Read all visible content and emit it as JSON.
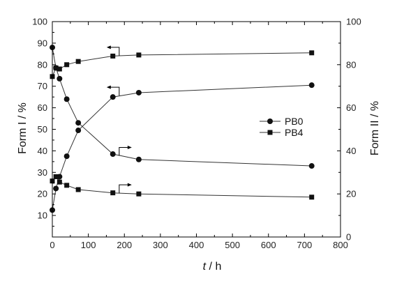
{
  "chart_data": {
    "type": "line",
    "xlabel_var": "t",
    "xlabel_unit": " / h",
    "ylabel_left": "Form I / %",
    "ylabel_right": "Form II / %",
    "xlim": [
      0,
      800
    ],
    "ylim_left": [
      0,
      100
    ],
    "ylim_right": [
      0,
      100
    ],
    "xticks": [
      0,
      100,
      200,
      300,
      400,
      500,
      600,
      700,
      800
    ],
    "yticks_left": [
      10,
      20,
      30,
      40,
      50,
      60,
      70,
      80,
      90,
      100
    ],
    "yticks_right": [
      0,
      20,
      40,
      60,
      80,
      100
    ],
    "grid": false,
    "legend_position": "right-middle",
    "series": [
      {
        "name": "PB0",
        "axis": "left",
        "marker": "circle",
        "points": [
          [
            0,
            12.5
          ],
          [
            10,
            22.5
          ],
          [
            20,
            28
          ],
          [
            40,
            37.5
          ],
          [
            72,
            49.5
          ],
          [
            168,
            65
          ],
          [
            240,
            67
          ],
          [
            720,
            70.5
          ]
        ]
      },
      {
        "name": "PB0",
        "axis": "right",
        "marker": "circle",
        "points": [
          [
            0,
            88
          ],
          [
            10,
            78.5
          ],
          [
            20,
            73.5
          ],
          [
            40,
            64
          ],
          [
            72,
            53
          ],
          [
            168,
            38.5
          ],
          [
            240,
            36
          ],
          [
            720,
            33
          ]
        ]
      },
      {
        "name": "PB4",
        "axis": "left",
        "marker": "square",
        "points": [
          [
            0,
            74.5
          ],
          [
            10,
            78.5
          ],
          [
            20,
            78
          ],
          [
            40,
            80
          ],
          [
            72,
            81.5
          ],
          [
            168,
            84
          ],
          [
            240,
            84.5
          ],
          [
            720,
            85.5
          ]
        ]
      },
      {
        "name": "PB4",
        "axis": "right",
        "marker": "square",
        "points": [
          [
            0,
            26
          ],
          [
            10,
            28
          ],
          [
            20,
            25.5
          ],
          [
            40,
            24
          ],
          [
            72,
            22
          ],
          [
            168,
            20.5
          ],
          [
            240,
            20
          ],
          [
            720,
            18.5
          ]
        ]
      }
    ],
    "annotations": [
      {
        "series_index": 2,
        "direction": "left"
      },
      {
        "series_index": 0,
        "direction": "left"
      },
      {
        "series_index": 1,
        "direction": "right"
      },
      {
        "series_index": 3,
        "direction": "right"
      }
    ]
  },
  "legend": [
    {
      "label": "PB0",
      "marker": "circle"
    },
    {
      "label": "PB4",
      "marker": "square"
    }
  ],
  "colors": {
    "line": "#333333",
    "marker": "#111111",
    "axis": "#000000"
  }
}
